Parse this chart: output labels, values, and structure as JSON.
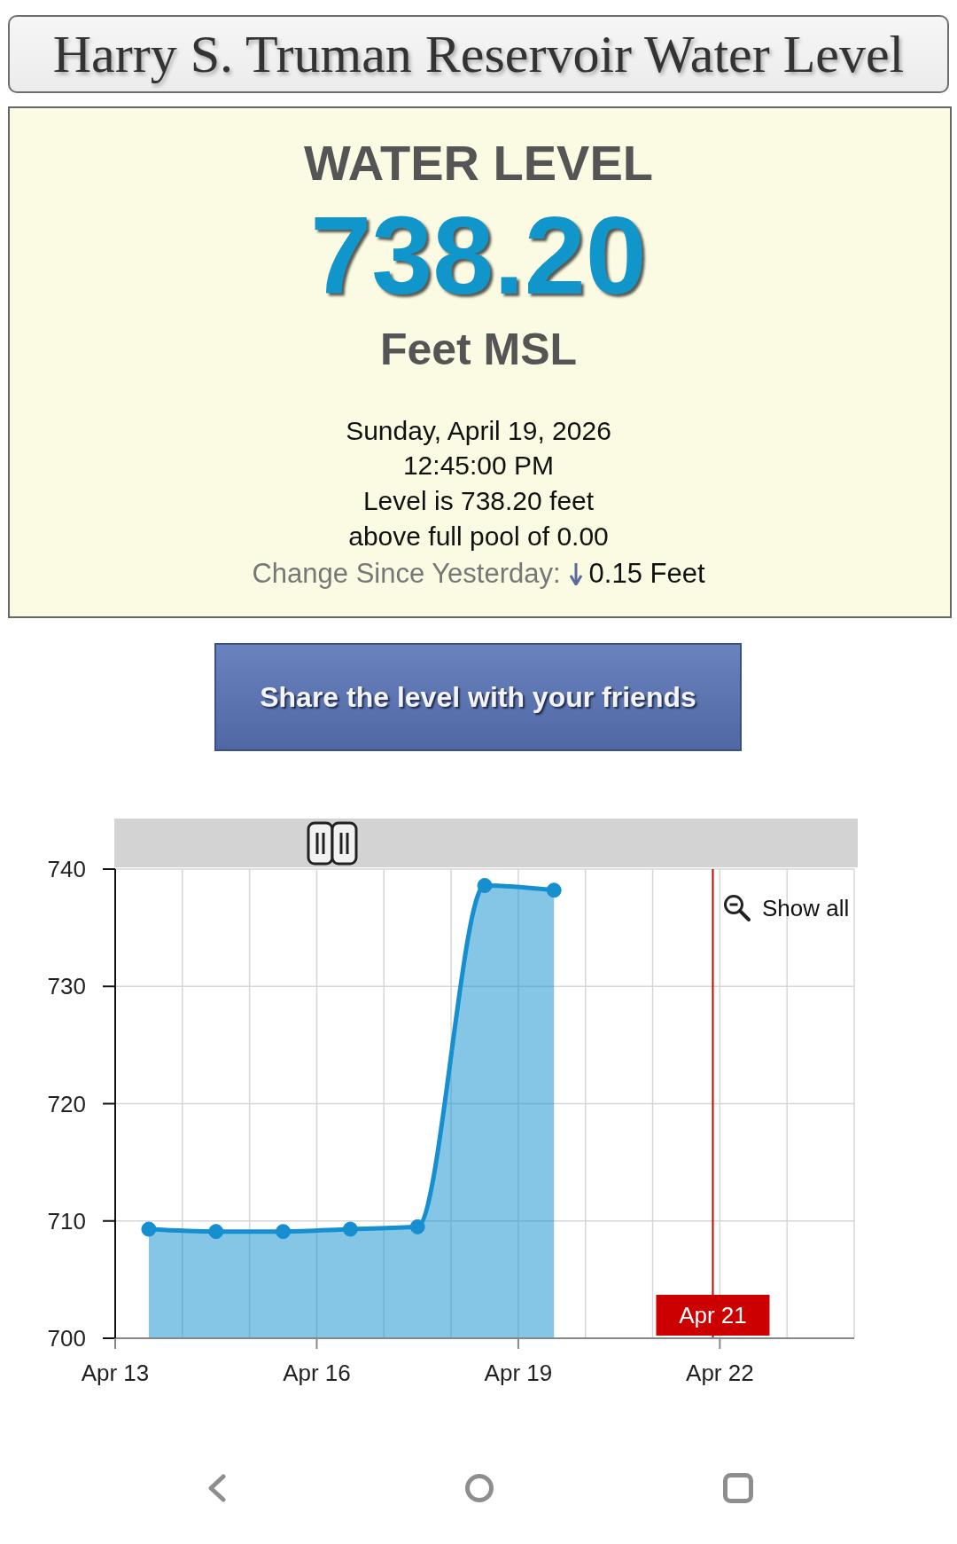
{
  "chart_data": {
    "type": "area",
    "title": "Harry S. Truman Reservoir Water Level",
    "annotations": [
      "WATER LEVEL",
      "738.20",
      "Feet MSL",
      "Sunday, April 19, 2026",
      "12:45:00 PM",
      "Level is 738.20 feet",
      "above full pool of 0.00",
      "Change Since Yesterday:",
      "0.15 Feet",
      "Share the level with your friends",
      "Show all"
    ],
    "x": [
      "2026-04-13T12:00",
      "2026-04-14T12:00",
      "2026-04-15T12:00",
      "2026-04-16T12:00",
      "2026-04-17T12:00",
      "2026-04-18T12:00",
      "2026-04-19T12:45"
    ],
    "values": [
      709.3,
      709.1,
      709.1,
      709.3,
      709.5,
      738.6,
      738.2
    ],
    "color": "#168fd0",
    "xlim": [
      "2026-04-13",
      "2026-04-24"
    ],
    "xticks": [
      {
        "value": "2026-04-13",
        "label": "Apr 13"
      },
      {
        "value": "2026-04-14",
        "label": null
      },
      {
        "value": "2026-04-15",
        "label": null
      },
      {
        "value": "2026-04-16",
        "label": "Apr 16"
      },
      {
        "value": "2026-04-17",
        "label": null
      },
      {
        "value": "2026-04-18",
        "label": null
      },
      {
        "value": "2026-04-19",
        "label": "Apr 19"
      },
      {
        "value": "2026-04-20",
        "label": null
      },
      {
        "value": "2026-04-21",
        "label": null
      },
      {
        "value": "2026-04-22",
        "label": "Apr 22"
      },
      {
        "value": "2026-04-23",
        "label": null
      },
      {
        "value": "2026-04-24",
        "label": null
      }
    ],
    "ylim": [
      700,
      740
    ],
    "yticks": [
      700,
      710,
      720,
      730,
      740
    ],
    "grid": true,
    "marker": "circle",
    "ref_lines": [
      {
        "axis": "x",
        "value": "2026-04-21T21:30",
        "label": "Apr 21",
        "color": "#cc0000"
      }
    ]
  }
}
